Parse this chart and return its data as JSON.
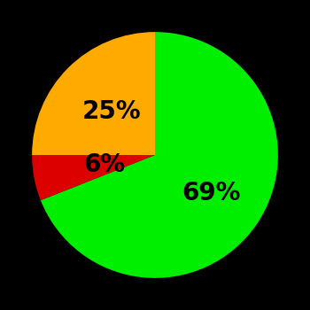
{
  "slices": [
    69,
    25,
    6
  ],
  "colors": [
    "#00ee00",
    "#ffaa00",
    "#dd0000"
  ],
  "labels": [
    "69%",
    "25%",
    "6%"
  ],
  "label_colors": [
    "#000000",
    "#000000",
    "#000000"
  ],
  "background_color": "#000000",
  "startangle": 90,
  "label_fontsize": 20,
  "label_fontweight": "bold",
  "label_radii": [
    0.55,
    0.52,
    0.45
  ]
}
